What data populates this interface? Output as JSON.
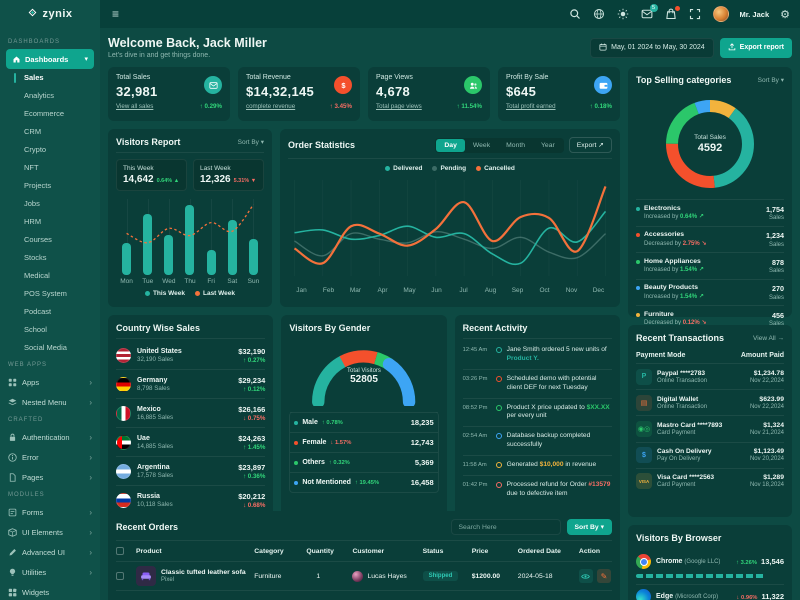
{
  "brand": {
    "name": "zynix"
  },
  "topbar": {
    "user_name": "Mr. Jack",
    "mail_badge": "5"
  },
  "welcome": {
    "title": "Welcome Back, Jack Miller",
    "subtitle": "Let's dive in and get things done.",
    "date_range": "May, 01 2024 to May, 30 2024",
    "export_label": "Export report"
  },
  "sidebar": {
    "sections": [
      {
        "label": "DASHBOARDS",
        "items": [
          {
            "label": "Dashboards",
            "icon": "home",
            "expanded": true,
            "children": [
              "Sales",
              "Analytics",
              "Ecommerce",
              "CRM",
              "Crypto",
              "NFT",
              "Projects",
              "Jobs",
              "HRM",
              "Courses",
              "Stocks",
              "Medical",
              "POS System",
              "Podcast",
              "School",
              "Social Media"
            ],
            "active_child": "Sales"
          }
        ]
      },
      {
        "label": "WEB APPS",
        "items": [
          {
            "label": "Apps",
            "icon": "grid",
            "arrow": true
          },
          {
            "label": "Nested Menu",
            "icon": "layers",
            "arrow": true
          }
        ]
      },
      {
        "label": "CRAFTED",
        "items": [
          {
            "label": "Authentication",
            "icon": "lock",
            "arrow": true
          },
          {
            "label": "Error",
            "icon": "info",
            "arrow": true
          },
          {
            "label": "Pages",
            "icon": "file",
            "arrow": true
          }
        ]
      },
      {
        "label": "MODULES",
        "items": [
          {
            "label": "Forms",
            "icon": "form",
            "arrow": true
          },
          {
            "label": "UI Elements",
            "icon": "box",
            "arrow": true
          },
          {
            "label": "Advanced UI",
            "icon": "pen",
            "arrow": true
          },
          {
            "label": "Utilities",
            "icon": "bulb",
            "arrow": true
          },
          {
            "label": "Widgets",
            "icon": "widgets",
            "arrow": false
          }
        ]
      }
    ]
  },
  "stat_cards": [
    {
      "label": "Total Sales",
      "value": "32,981",
      "link": "View all sales",
      "delta": "0.29%",
      "direction": "up",
      "delta_color": "green",
      "icon": "mail",
      "icon_bg": "#25b3a0"
    },
    {
      "label": "Total Revenue",
      "value": "$14,32,145",
      "link": "complete revenue",
      "delta": "3.45%",
      "direction": "up",
      "delta_color": "red",
      "icon": "dollar",
      "icon_bg": "#f4502c"
    },
    {
      "label": "Page Views",
      "value": "4,678",
      "link": "Total page views",
      "delta": "11.54%",
      "direction": "up",
      "delta_color": "green",
      "icon": "users",
      "icon_bg": "#2bc76a"
    },
    {
      "label": "Profit By Sale",
      "value": "$645",
      "link": "Total profit earned",
      "delta": "0.18%",
      "direction": "up",
      "delta_color": "green",
      "icon": "wallet",
      "icon_bg": "#3da5f4"
    }
  ],
  "visitors_report": {
    "title": "Visitors Report",
    "sort_label": "Sort By",
    "tiles": [
      {
        "label": "This Week",
        "value": "14,642",
        "delta": "0.64%",
        "direction": "up",
        "color": "green"
      },
      {
        "label": "Last Week",
        "value": "12,326",
        "delta": "5.31%",
        "direction": "down",
        "color": "red"
      }
    ],
    "legend": [
      "This Week",
      "Last Week"
    ],
    "chart_data": {
      "type": "bar+line",
      "categories": [
        "Mon",
        "Tue",
        "Wed",
        "Thu",
        "Fri",
        "Sat",
        "Sun"
      ],
      "series": [
        {
          "name": "This Week",
          "type": "bar",
          "values": [
            42,
            80,
            52,
            92,
            33,
            72,
            48
          ]
        },
        {
          "name": "Last Week",
          "type": "line",
          "values": [
            55,
            42,
            62,
            52,
            70,
            58,
            95
          ]
        }
      ]
    }
  },
  "order_statistics": {
    "title": "Order Statistics",
    "tabs": [
      "Day",
      "Week",
      "Month",
      "Year"
    ],
    "active_tab": "Day",
    "export_label": "Export",
    "chart_data": {
      "type": "line",
      "x": [
        "Jan",
        "Feb",
        "Mar",
        "Apr",
        "May",
        "Jun",
        "Jul",
        "Aug",
        "Sep",
        "Oct",
        "Nov",
        "Dec"
      ],
      "series": [
        {
          "name": "Delivered",
          "color": "#25b3a0",
          "values": [
            47,
            50,
            40,
            44,
            54,
            42,
            46,
            24,
            14,
            52,
            37,
            70
          ]
        },
        {
          "name": "Pending",
          "color": "rgba(180,215,208,0.30)",
          "values": [
            38,
            22,
            46,
            40,
            36,
            48,
            40,
            30,
            42,
            26,
            20,
            46
          ]
        },
        {
          "name": "Cancelled",
          "color": "#f4713b",
          "values": [
            30,
            14,
            54,
            46,
            33,
            51,
            80,
            38,
            64,
            63,
            27,
            97
          ]
        }
      ]
    }
  },
  "top_categories": {
    "title": "Top Selling categories",
    "sort_label": "Sort By",
    "center_label": "Total Sales",
    "center_value": "4592",
    "items": [
      {
        "name": "Electronics",
        "trend": "Increased by",
        "delta": "0.64%",
        "direction": "up",
        "sales": "1,754",
        "unit": "Sales",
        "color": "#25b3a0"
      },
      {
        "name": "Accessories",
        "trend": "Decreased by",
        "delta": "2.75%",
        "direction": "down",
        "sales": "1,234",
        "unit": "Sales",
        "color": "#f4502c"
      },
      {
        "name": "Home Appliances",
        "trend": "Increased by",
        "delta": "1.54%",
        "direction": "up",
        "sales": "878",
        "unit": "Sales",
        "color": "#2bc76a"
      },
      {
        "name": "Beauty Products",
        "trend": "Increased by",
        "delta": "1.54%",
        "direction": "up",
        "sales": "270",
        "unit": "Sales",
        "color": "#3da5f4"
      },
      {
        "name": "Furniture",
        "trend": "Decreased by",
        "delta": "0.12%",
        "direction": "down",
        "sales": "456",
        "unit": "Sales",
        "color": "#f2b33d"
      }
    ]
  },
  "country_sales": {
    "title": "Country Wise Sales",
    "rows": [
      {
        "country": "United States",
        "flag": "us",
        "sales": "32,190 Sales",
        "amount": "$32,190",
        "delta": "0.27%",
        "direction": "up"
      },
      {
        "country": "Germany",
        "flag": "de",
        "sales": "8,798 Sales",
        "amount": "$29,234",
        "delta": "0.12%",
        "direction": "up"
      },
      {
        "country": "Mexico",
        "flag": "mx",
        "sales": "16,885 Sales",
        "amount": "$26,166",
        "delta": "0.75%",
        "direction": "down"
      },
      {
        "country": "Uae",
        "flag": "ae",
        "sales": "14,885 Sales",
        "amount": "$24,263",
        "delta": "1.45%",
        "direction": "up"
      },
      {
        "country": "Argentina",
        "flag": "ar",
        "sales": "17,578 Sales",
        "amount": "$23,897",
        "delta": "0.36%",
        "direction": "up"
      },
      {
        "country": "Russia",
        "flag": "ru",
        "sales": "10,118 Sales",
        "amount": "$20,212",
        "delta": "0.68%",
        "direction": "down"
      }
    ]
  },
  "gender": {
    "title": "Visitors By Gender",
    "center_label": "Total Visitors",
    "center_value": "52805",
    "rows": [
      {
        "label": "Male",
        "delta": "0.78%",
        "direction": "up",
        "delta_color": "green",
        "value": "18,235",
        "color": "#25b3a0"
      },
      {
        "label": "Female",
        "delta": "1.57%",
        "direction": "down",
        "delta_color": "red",
        "value": "12,743",
        "color": "#f4502c"
      },
      {
        "label": "Others",
        "delta": "0.32%",
        "direction": "up",
        "delta_color": "green",
        "value": "5,369",
        "color": "#2bc76a"
      },
      {
        "label": "Not Mentioned",
        "delta": "19.45%",
        "direction": "up",
        "delta_color": "green",
        "value": "16,458",
        "color": "#3da5f4"
      }
    ]
  },
  "activity": {
    "title": "Recent Activity",
    "items": [
      {
        "time": "12:45 Am",
        "color": "#25b3a0",
        "pre": "Jane Smith ordered 5 new units of ",
        "highlight": "Product Y.",
        "post": ""
      },
      {
        "time": "03:26 Pm",
        "color": "#f4502c",
        "pre": "Scheduled demo with potential client DEF for next Tuesday",
        "highlight": "",
        "post": ""
      },
      {
        "time": "08:52 Pm",
        "color": "#2bc76a",
        "pre": "Product X price updated to ",
        "highlight": "$XX.XX",
        "post": " per every unit"
      },
      {
        "time": "02:54 Am",
        "color": "#3da5f4",
        "pre": "Database backup completed successfully",
        "highlight": "",
        "post": ""
      },
      {
        "time": "11:58 Am",
        "color": "#f2b33d",
        "pre": "Generated ",
        "highlight": "$10,000",
        "post": " in revenue"
      },
      {
        "time": "01:42 Pm",
        "color": "#f66d64",
        "pre": "Processed refund for Order ",
        "highlight": "#13579",
        "post": " due to defective item"
      }
    ]
  },
  "transactions": {
    "title": "Recent Transactions",
    "view_all": "View All →",
    "col_mode": "Payment Mode",
    "col_amount": "Amount Paid",
    "rows": [
      {
        "name": "Paypal ****2783",
        "mode": "Online Transaction",
        "amount": "$1,234.78",
        "date": "Nov 22,2024",
        "icon": "paypal",
        "color": "#25b3a0"
      },
      {
        "name": "Digital Wallet",
        "mode": "Online Transaction",
        "amount": "$623.99",
        "date": "Nov 22,2024",
        "icon": "wallet",
        "color": "#f4713b"
      },
      {
        "name": "Mastro Card ****7893",
        "mode": "Card Payment",
        "amount": "$1,324",
        "date": "Nov 21,2024",
        "icon": "mastercard",
        "color": "#2bc76a"
      },
      {
        "name": "Cash On Delivery",
        "mode": "Pay On Delivery",
        "amount": "$1,123.49",
        "date": "Nov 20,2024",
        "icon": "cash",
        "color": "#3da5f4"
      },
      {
        "name": "Visa Card ****2563",
        "mode": "Card Payment",
        "amount": "$1,289",
        "date": "Nov 18,2024",
        "icon": "visa",
        "color": "#f2b33d"
      }
    ]
  },
  "orders": {
    "title": "Recent Orders",
    "search_placeholder": "Search Here",
    "sort_label": "Sort By",
    "headers": [
      "Product",
      "Category",
      "Quantity",
      "Customer",
      "Status",
      "Price",
      "Ordered Date",
      "Action"
    ],
    "rows": [
      {
        "product": "Classic tufted leather sofa",
        "brand": "Pixel",
        "category": "Furniture",
        "quantity": "1",
        "customer": "Lucas Hayes",
        "status": "Shipped",
        "price": "$1200.00",
        "date": "2024-05-18"
      }
    ]
  },
  "browsers": {
    "title": "Visitors By Browser",
    "rows": [
      {
        "name": "Chrome",
        "company": "(Google LLC)",
        "delta": "3.26%",
        "direction": "up",
        "delta_color": "green",
        "value": "13,546",
        "color": "#25b3a0",
        "bar_pct": 88,
        "icon": "chrome"
      },
      {
        "name": "Edge",
        "company": "(Microsoft Corp)",
        "delta": "0.96%",
        "direction": "down",
        "delta_color": "red",
        "value": "11,322",
        "color": "#f4713b",
        "bar_pct": 62,
        "icon": "edge"
      }
    ]
  }
}
